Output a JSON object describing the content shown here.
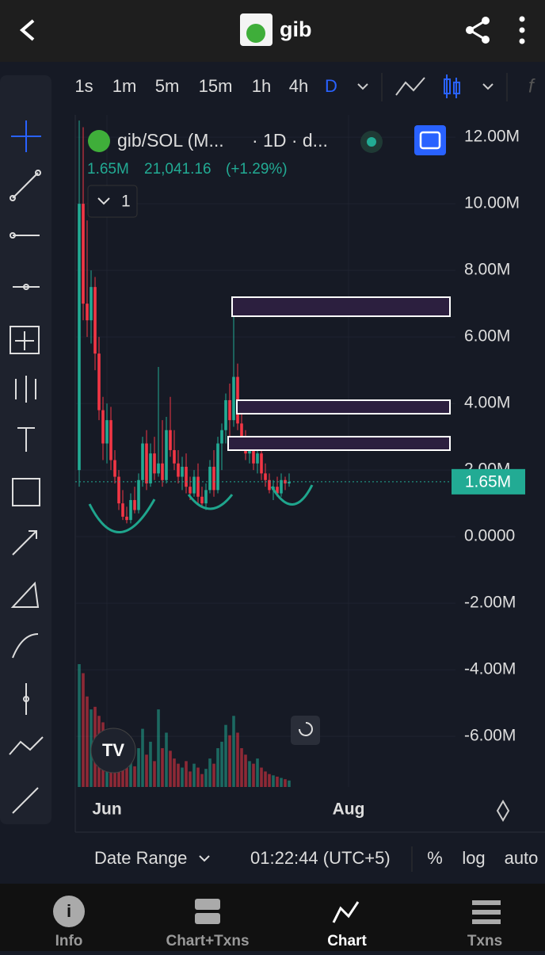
{
  "header": {
    "title": "gib"
  },
  "intervals": [
    "1s",
    "1m",
    "5m",
    "15m",
    "1h",
    "4h",
    "D"
  ],
  "legend": {
    "symbol": "gib/SOL (M...",
    "meta": "· 1D · d...",
    "value": "1.65M",
    "price": "21,041.16",
    "change": "(+1.29%)",
    "indicators": "1"
  },
  "chart_data": {
    "type": "candlestick",
    "ylim": [
      -7.52,
      12.67
    ],
    "yticks": [
      {
        "value": 12,
        "label": "12.00M"
      },
      {
        "value": 10,
        "label": "10.00M"
      },
      {
        "value": 8,
        "label": "8.00M"
      },
      {
        "value": 6,
        "label": "6.00M"
      },
      {
        "value": 4,
        "label": "4.00M"
      },
      {
        "value": 2,
        "label": "2.00M"
      },
      {
        "value": 0,
        "label": "0.0000"
      },
      {
        "value": -2,
        "label": "-2.00M"
      },
      {
        "value": -4,
        "label": "-4.00M"
      },
      {
        "value": -6,
        "label": "-6.00M"
      }
    ],
    "xlim": [
      -7,
      95
    ],
    "xticks": [
      {
        "value": 7,
        "label": "Jun"
      },
      {
        "value": 68,
        "label": "Aug"
      }
    ],
    "last_price": {
      "value": 1.65,
      "label": "1.65M"
    },
    "up_color": "#22ab94",
    "down_color": "#f23645",
    "candles": [
      [
        2.0,
        12.5,
        1.5,
        10.0
      ],
      [
        10.0,
        12.3,
        6.5,
        7.0
      ],
      [
        7.0,
        9.5,
        6.0,
        6.5
      ],
      [
        6.5,
        8.0,
        5.8,
        7.5
      ],
      [
        7.5,
        7.8,
        5.0,
        5.5
      ],
      [
        5.5,
        6.0,
        3.5,
        3.8
      ],
      [
        3.8,
        4.2,
        2.3,
        2.8
      ],
      [
        2.8,
        4.0,
        2.2,
        3.5
      ],
      [
        3.5,
        3.9,
        2.0,
        2.3
      ],
      [
        2.3,
        2.6,
        1.6,
        1.8
      ],
      [
        1.8,
        2.0,
        0.8,
        1.0
      ],
      [
        1.0,
        1.4,
        0.5,
        0.6
      ],
      [
        0.6,
        0.9,
        0.4,
        0.5
      ],
      [
        0.5,
        1.3,
        0.4,
        1.1
      ],
      [
        1.1,
        1.5,
        0.7,
        0.8
      ],
      [
        0.8,
        1.9,
        0.7,
        1.7
      ],
      [
        1.7,
        3.0,
        1.5,
        2.8
      ],
      [
        2.8,
        3.2,
        1.4,
        1.6
      ],
      [
        1.6,
        2.8,
        1.5,
        2.5
      ],
      [
        2.5,
        3.0,
        1.7,
        1.9
      ],
      [
        1.9,
        5.1,
        1.8,
        2.2
      ],
      [
        2.2,
        3.5,
        1.5,
        1.7
      ],
      [
        1.7,
        3.6,
        1.6,
        3.2
      ],
      [
        3.2,
        4.2,
        2.4,
        2.6
      ],
      [
        2.6,
        3.2,
        2.0,
        2.2
      ],
      [
        2.2,
        2.6,
        1.6,
        1.8
      ],
      [
        1.8,
        2.4,
        1.4,
        2.1
      ],
      [
        2.1,
        2.5,
        1.3,
        1.5
      ],
      [
        1.5,
        1.8,
        1.1,
        1.3
      ],
      [
        1.3,
        2.0,
        1.2,
        1.8
      ],
      [
        1.8,
        2.2,
        1.0,
        1.2
      ],
      [
        1.2,
        1.5,
        0.9,
        1.0
      ],
      [
        1.0,
        1.6,
        0.8,
        1.4
      ],
      [
        1.4,
        2.3,
        1.3,
        2.1
      ],
      [
        2.1,
        2.6,
        1.2,
        1.4
      ],
      [
        1.4,
        3.0,
        1.3,
        2.8
      ],
      [
        2.8,
        3.4,
        2.0,
        3.2
      ],
      [
        3.2,
        4.3,
        2.8,
        4.1
      ],
      [
        4.1,
        4.6,
        3.0,
        3.5
      ],
      [
        3.5,
        7.0,
        3.3,
        4.8
      ],
      [
        4.8,
        5.2,
        3.2,
        3.4
      ],
      [
        3.4,
        3.7,
        2.6,
        2.8
      ],
      [
        2.8,
        3.2,
        2.3,
        2.5
      ],
      [
        2.5,
        3.0,
        2.2,
        2.7
      ],
      [
        2.7,
        2.9,
        2.0,
        2.2
      ],
      [
        2.2,
        2.8,
        1.9,
        2.5
      ],
      [
        2.5,
        2.7,
        1.7,
        1.9
      ],
      [
        1.9,
        2.2,
        1.5,
        1.7
      ],
      [
        1.7,
        1.9,
        1.3,
        1.4
      ],
      [
        1.4,
        1.7,
        1.1,
        1.5
      ],
      [
        1.5,
        1.8,
        1.2,
        1.3
      ],
      [
        1.3,
        1.9,
        1.2,
        1.7
      ],
      [
        1.7,
        1.8,
        1.4,
        1.6
      ],
      [
        1.6,
        1.9,
        1.5,
        1.65
      ]
    ],
    "volume": [
      95,
      88,
      70,
      60,
      62,
      55,
      50,
      40,
      35,
      30,
      22,
      18,
      15,
      20,
      16,
      30,
      45,
      25,
      35,
      20,
      60,
      30,
      42,
      28,
      22,
      18,
      15,
      20,
      12,
      18,
      15,
      10,
      14,
      22,
      18,
      30,
      35,
      48,
      40,
      55,
      42,
      30,
      25,
      20,
      18,
      22,
      15,
      12,
      10,
      9,
      8,
      7,
      6,
      5
    ]
  },
  "bottom_bar": {
    "date_range": "Date Range",
    "time": "01:22:44 (UTC+5)",
    "percent": "%",
    "log": "log",
    "auto": "auto"
  },
  "nav": [
    "Info",
    "Chart+Txns",
    "Chart",
    "Txns"
  ]
}
